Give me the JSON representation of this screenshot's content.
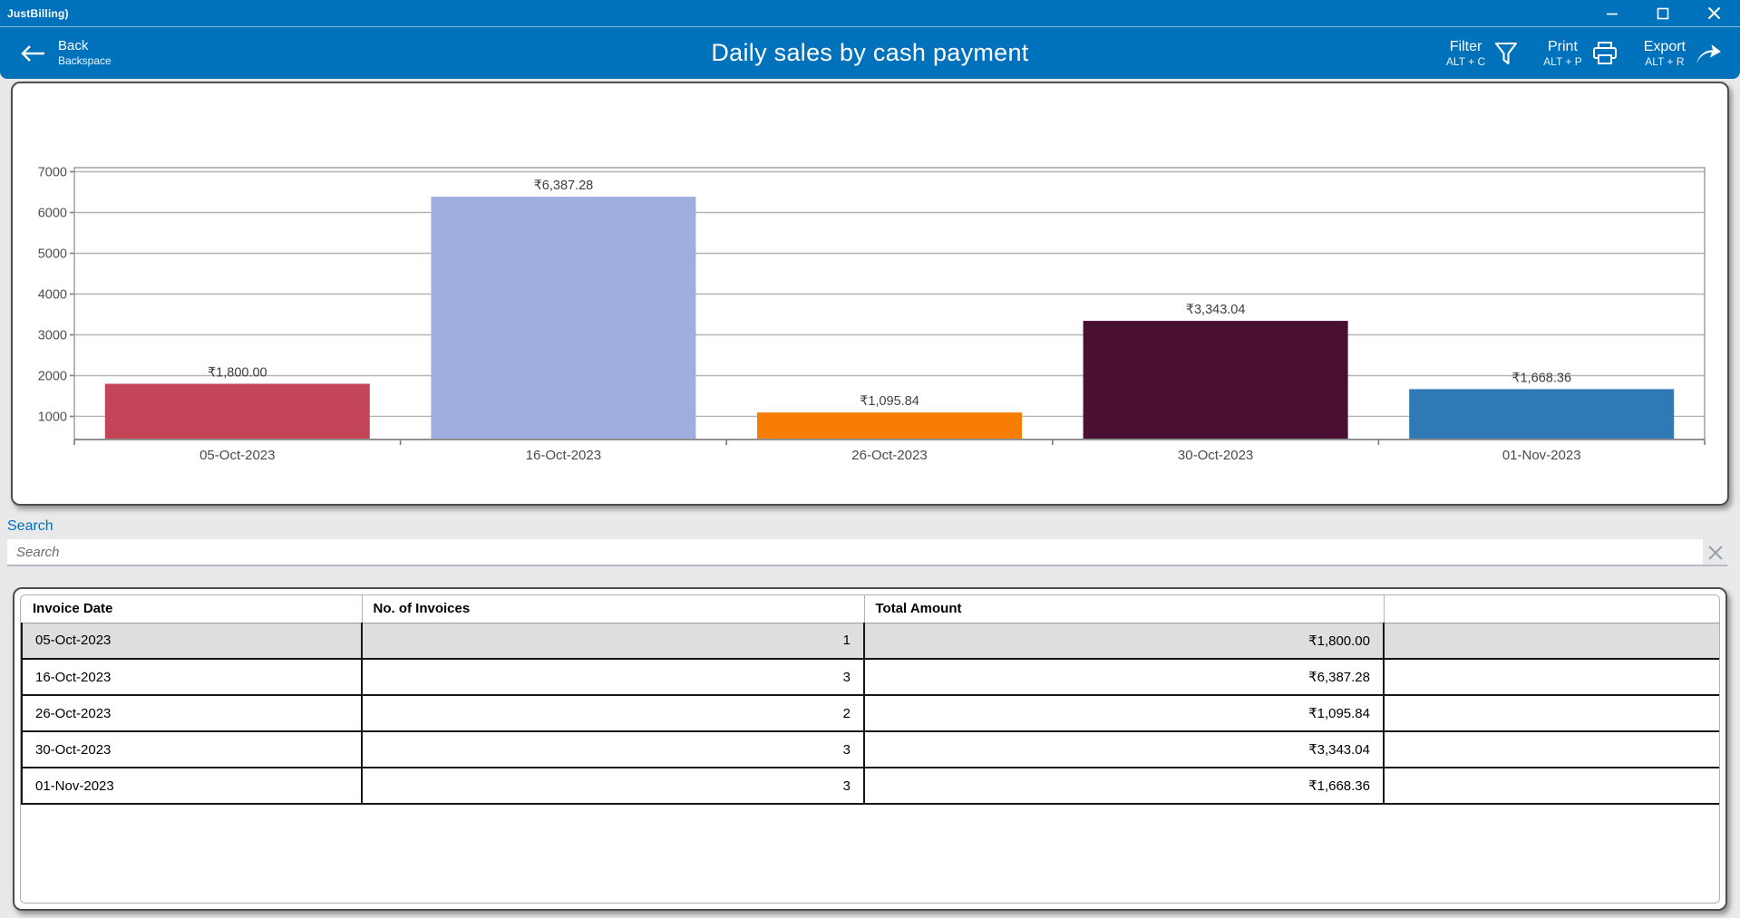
{
  "window": {
    "logo": "JustBilling)",
    "controls": {
      "minimize": "minimize",
      "maximize": "maximize",
      "close": "close"
    }
  },
  "appbar": {
    "back": {
      "label": "Back",
      "shortcut": "Backspace"
    },
    "title": "Daily sales by cash payment",
    "actions": [
      {
        "label": "Filter",
        "shortcut": "ALT + C",
        "icon": "filter-icon"
      },
      {
        "label": "Print",
        "shortcut": "ALT + P",
        "icon": "printer-icon"
      },
      {
        "label": "Export",
        "shortcut": "ALT + R",
        "icon": "export-icon"
      }
    ]
  },
  "search": {
    "label": "Search",
    "placeholder": "Search",
    "value": ""
  },
  "chart_data": {
    "type": "bar",
    "title": "",
    "xlabel": "",
    "ylabel": "",
    "categories": [
      "05-Oct-2023",
      "16-Oct-2023",
      "26-Oct-2023",
      "30-Oct-2023",
      "01-Nov-2023"
    ],
    "values": [
      1800.0,
      6387.28,
      1095.84,
      3343.04,
      1668.36
    ],
    "value_labels": [
      "₹1,800.00",
      "₹6,387.28",
      "₹1,095.84",
      "₹3,343.04",
      "₹1,668.36"
    ],
    "bar_colors": [
      "#c44558",
      "#9faddf",
      "#f87d05",
      "#4a1031",
      "#2e79b6"
    ],
    "yticks": [
      1000,
      2000,
      3000,
      4000,
      5000,
      6000,
      7000
    ],
    "ylim": [
      433,
      7100
    ],
    "grid": true,
    "legend": "none"
  },
  "table": {
    "columns": [
      "Invoice Date",
      "No. of Invoices",
      "Total Amount",
      ""
    ],
    "rows": [
      {
        "date": "05-Oct-2023",
        "invoices": "1",
        "amount": "₹1,800.00",
        "selected": true
      },
      {
        "date": "16-Oct-2023",
        "invoices": "3",
        "amount": "₹6,387.28",
        "selected": false
      },
      {
        "date": "26-Oct-2023",
        "invoices": "2",
        "amount": "₹1,095.84",
        "selected": false
      },
      {
        "date": "30-Oct-2023",
        "invoices": "3",
        "amount": "₹3,343.04",
        "selected": false
      },
      {
        "date": "01-Nov-2023",
        "invoices": "3",
        "amount": "₹1,668.36",
        "selected": false
      }
    ]
  }
}
